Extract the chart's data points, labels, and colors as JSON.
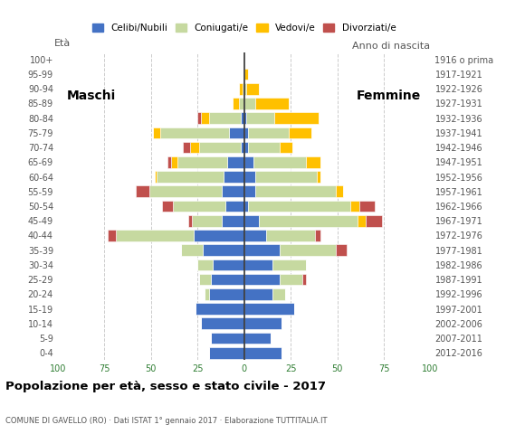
{
  "age_groups": [
    "0-4",
    "5-9",
    "10-14",
    "15-19",
    "20-24",
    "25-29",
    "30-34",
    "35-39",
    "40-44",
    "45-49",
    "50-54",
    "55-59",
    "60-64",
    "65-69",
    "70-74",
    "75-79",
    "80-84",
    "85-89",
    "90-94",
    "95-99",
    "100+"
  ],
  "birth_years": [
    "2012-2016",
    "2007-2011",
    "2002-2006",
    "1997-2001",
    "1992-1996",
    "1987-1991",
    "1982-1986",
    "1977-1981",
    "1972-1976",
    "1967-1971",
    "1962-1966",
    "1957-1961",
    "1952-1956",
    "1947-1951",
    "1942-1946",
    "1937-1941",
    "1932-1936",
    "1927-1931",
    "1922-1926",
    "1917-1921",
    "1916 o prima"
  ],
  "colors": {
    "celibe": "#4472c4",
    "coniugato": "#c6d9a0",
    "vedovo": "#ffc000",
    "divorziato": "#c0504d"
  },
  "males": {
    "celibe": [
      19,
      18,
      23,
      26,
      19,
      18,
      17,
      22,
      27,
      12,
      10,
      12,
      11,
      9,
      2,
      8,
      2,
      0,
      0,
      0,
      0
    ],
    "coniugato": [
      0,
      0,
      0,
      0,
      2,
      6,
      8,
      12,
      42,
      16,
      28,
      39,
      36,
      27,
      22,
      37,
      17,
      3,
      1,
      0,
      0
    ],
    "vedovo": [
      0,
      0,
      0,
      0,
      0,
      0,
      0,
      0,
      0,
      0,
      0,
      0,
      1,
      3,
      5,
      4,
      4,
      3,
      2,
      0,
      0
    ],
    "divorziato": [
      0,
      0,
      0,
      0,
      0,
      0,
      0,
      0,
      4,
      2,
      6,
      7,
      0,
      2,
      4,
      0,
      2,
      0,
      0,
      0,
      0
    ]
  },
  "females": {
    "celibe": [
      20,
      14,
      20,
      27,
      15,
      19,
      15,
      19,
      12,
      8,
      2,
      6,
      6,
      5,
      2,
      2,
      1,
      0,
      0,
      0,
      0
    ],
    "coniugato": [
      0,
      0,
      0,
      0,
      7,
      12,
      18,
      30,
      26,
      53,
      55,
      43,
      33,
      28,
      17,
      22,
      15,
      6,
      1,
      0,
      0
    ],
    "vedovo": [
      0,
      0,
      0,
      0,
      0,
      0,
      0,
      0,
      0,
      4,
      5,
      4,
      2,
      8,
      7,
      12,
      24,
      18,
      7,
      2,
      0
    ],
    "divorziato": [
      0,
      0,
      0,
      0,
      0,
      2,
      0,
      6,
      3,
      9,
      8,
      0,
      0,
      0,
      0,
      0,
      0,
      0,
      0,
      0,
      0
    ]
  },
  "title": "Popolazione per età, sesso e stato civile - 2017",
  "subtitle": "COMUNE DI GAVELLO (RO) · Dati ISTAT 1° gennaio 2017 · Elaborazione TUTTITALIA.IT",
  "xlabel_left": "Età",
  "xlabel_right": "Anno di nascita",
  "label_maschi": "Maschi",
  "label_femmine": "Femmine",
  "xlim": 100,
  "background_color": "#ffffff"
}
